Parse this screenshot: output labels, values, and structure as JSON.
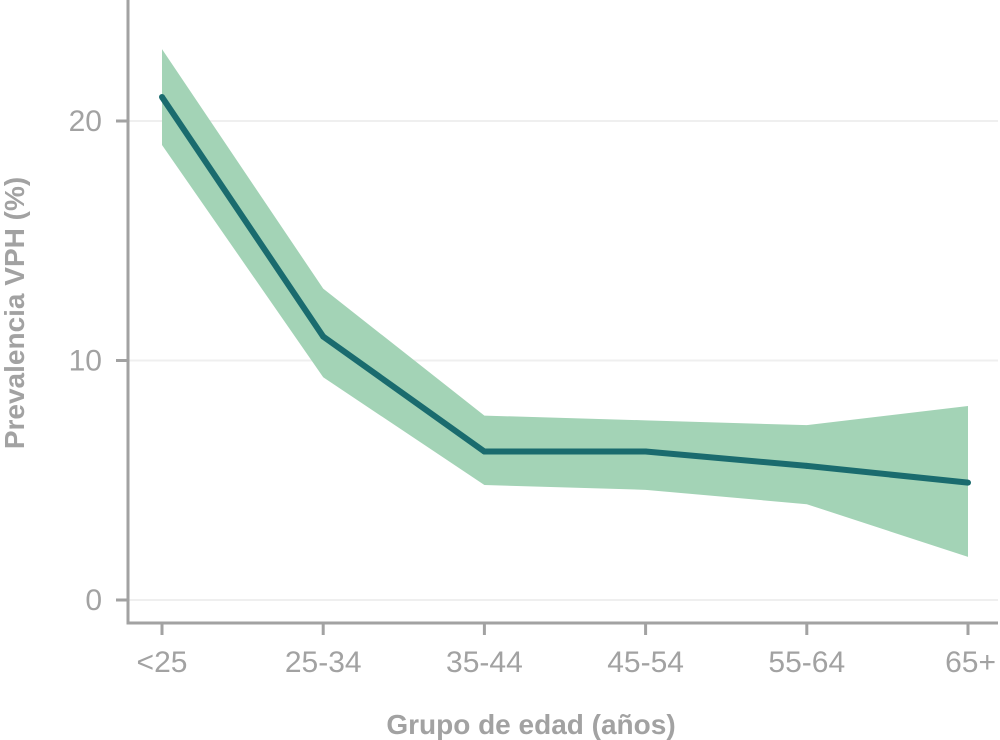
{
  "chart_data": {
    "type": "line",
    "title": "",
    "xlabel": "Grupo de edad (años)",
    "ylabel": "Prevalencia VPH (%)",
    "categories": [
      "<25",
      "25-34",
      "35-44",
      "45-54",
      "55-64",
      "65+"
    ],
    "series": [
      {
        "values": [
          21.0,
          11.0,
          6.2,
          6.2,
          5.6,
          4.9
        ],
        "lower": [
          19.0,
          9.3,
          4.8,
          4.6,
          4.0,
          1.8
        ],
        "upper": [
          23.0,
          13.0,
          7.7,
          7.5,
          7.3,
          8.1
        ]
      }
    ],
    "yticks": [
      "0",
      "10",
      "20"
    ],
    "ylim": [
      -1,
      25
    ],
    "grid": true,
    "legend": "none"
  },
  "colors": {
    "line": "#1a6b6e",
    "band": "#a3d3b6",
    "axis": "#a2a2a2",
    "grid": "#efefef",
    "text": "#a2a2a2"
  }
}
